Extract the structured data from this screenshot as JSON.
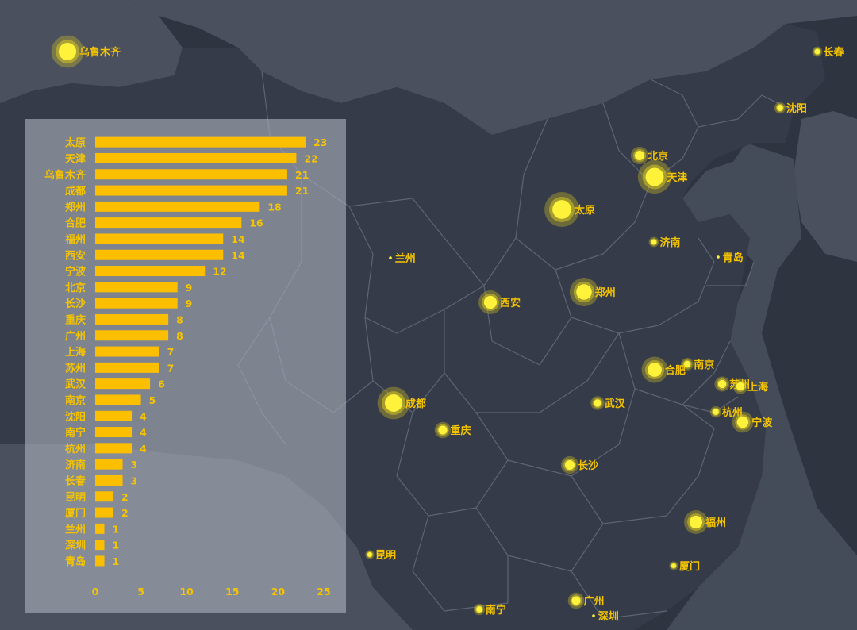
{
  "map": {
    "colors": {
      "background": "#2e3440",
      "land": "#353b49",
      "province_border": "#5d6473",
      "neighbor_land": "#4a505e",
      "water": "#444b59",
      "marker": "#fff23a",
      "marker_halo": "#d7c622",
      "label": "#f5c400"
    },
    "cities": [
      {
        "name": "乌鲁木齐",
        "value": 21
      },
      {
        "name": "长春",
        "value": 3
      },
      {
        "name": "沈阳",
        "value": 4
      },
      {
        "name": "北京",
        "value": 9
      },
      {
        "name": "天津",
        "value": 22
      },
      {
        "name": "太原",
        "value": 23
      },
      {
        "name": "济南",
        "value": 3
      },
      {
        "name": "青岛",
        "value": 1
      },
      {
        "name": "兰州",
        "value": 1
      },
      {
        "name": "西安",
        "value": 14
      },
      {
        "name": "郑州",
        "value": 18
      },
      {
        "name": "南京",
        "value": 5
      },
      {
        "name": "合肥",
        "value": 16
      },
      {
        "name": "苏州",
        "value": 7
      },
      {
        "name": "上海",
        "value": 7
      },
      {
        "name": "成都",
        "value": 21
      },
      {
        "name": "武汉",
        "value": 6
      },
      {
        "name": "杭州",
        "value": 4
      },
      {
        "name": "宁波",
        "value": 12
      },
      {
        "name": "重庆",
        "value": 8
      },
      {
        "name": "长沙",
        "value": 9
      },
      {
        "name": "福州",
        "value": 14
      },
      {
        "name": "昆明",
        "value": 2
      },
      {
        "name": "厦门",
        "value": 2
      },
      {
        "name": "广州",
        "value": 8
      },
      {
        "name": "南宁",
        "value": 4
      },
      {
        "name": "深圳",
        "value": 1
      }
    ]
  },
  "chart_data": {
    "type": "bar",
    "orientation": "horizontal",
    "categories": [
      "太原",
      "天津",
      "乌鲁木齐",
      "成都",
      "郑州",
      "合肥",
      "福州",
      "西安",
      "宁波",
      "北京",
      "长沙",
      "重庆",
      "广州",
      "上海",
      "苏州",
      "武汉",
      "南京",
      "沈阳",
      "南宁",
      "杭州",
      "济南",
      "长春",
      "昆明",
      "厦门",
      "兰州",
      "深圳",
      "青岛"
    ],
    "values": [
      23,
      22,
      21,
      21,
      18,
      16,
      14,
      14,
      12,
      9,
      9,
      8,
      8,
      7,
      7,
      6,
      5,
      4,
      4,
      4,
      3,
      3,
      2,
      2,
      1,
      1,
      1
    ],
    "xlim": [
      0,
      25
    ],
    "xticks": [
      0,
      5,
      10,
      15,
      20,
      25
    ],
    "title": "",
    "xlabel": "",
    "ylabel": "",
    "grid": false,
    "color": "#fcbf00"
  }
}
